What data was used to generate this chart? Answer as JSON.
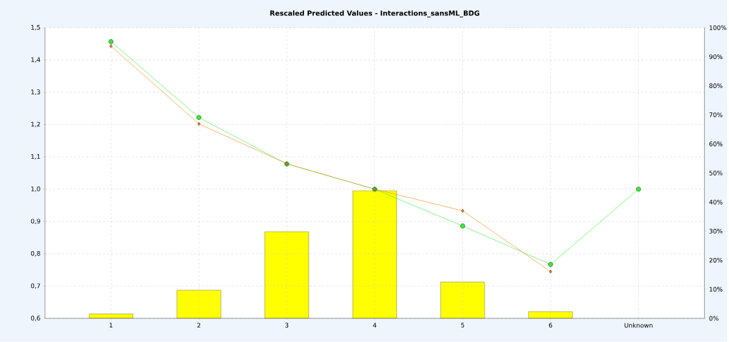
{
  "chart_data": {
    "type": "bar",
    "title": "Rescaled Predicted Values - Interactions_sansML_BDG",
    "categories": [
      "1",
      "2",
      "3",
      "4",
      "5",
      "6",
      "Unknown"
    ],
    "series": [
      {
        "axis": "y2",
        "color": "#ffff00",
        "values": [
          1.5,
          9.7,
          29.8,
          43.9,
          12.5,
          2.3,
          null
        ]
      },
      {
        "type": "line",
        "color": "#33ee33",
        "marker": "circle",
        "values": [
          1.457,
          1.222,
          1.078,
          1.0,
          0.886,
          0.767,
          1.0
        ]
      },
      {
        "type": "line",
        "color": "#ff7f11",
        "marker": "diamond",
        "values": [
          1.443,
          1.202,
          1.079,
          1.0,
          0.933,
          0.745,
          null
        ]
      }
    ],
    "ylim": [
      0.6,
      1.5
    ],
    "yticks": [
      {
        "value": 0.6,
        "label": "0,6"
      },
      {
        "value": 0.7,
        "label": "0,7"
      },
      {
        "value": 0.8,
        "label": "0,8"
      },
      {
        "value": 0.9,
        "label": "0,9"
      },
      {
        "value": 1.0,
        "label": "1,0"
      },
      {
        "value": 1.1,
        "label": "1,1"
      },
      {
        "value": 1.2,
        "label": "1,2"
      },
      {
        "value": 1.3,
        "label": "1,3"
      },
      {
        "value": 1.4,
        "label": "1,4"
      },
      {
        "value": 1.5,
        "label": "1,5"
      }
    ],
    "y2lim": [
      0,
      100
    ],
    "y2ticks": [
      {
        "value": 0,
        "label": "0%"
      },
      {
        "value": 10,
        "label": "10%"
      },
      {
        "value": 20,
        "label": "20%"
      },
      {
        "value": 30,
        "label": "30%"
      },
      {
        "value": 40,
        "label": "40%"
      },
      {
        "value": 50,
        "label": "50%"
      },
      {
        "value": 60,
        "label": "60%"
      },
      {
        "value": 70,
        "label": "70%"
      },
      {
        "value": 80,
        "label": "80%"
      },
      {
        "value": 90,
        "label": "90%"
      },
      {
        "value": 100,
        "label": "100%"
      }
    ],
    "grid": true
  }
}
